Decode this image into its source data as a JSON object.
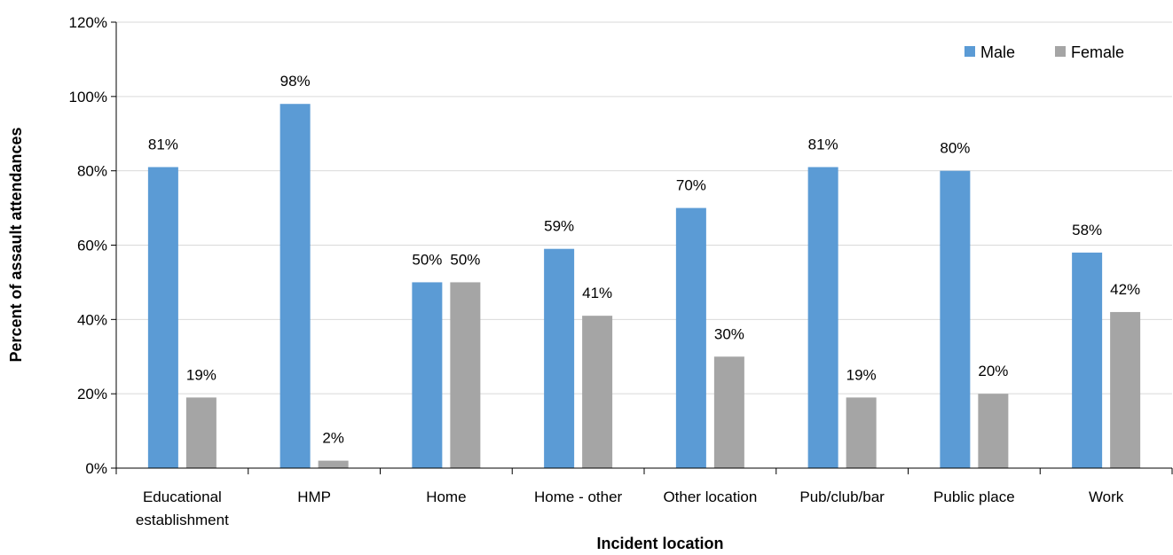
{
  "chart_data": {
    "type": "bar",
    "categories": [
      [
        "Educational",
        "establishment"
      ],
      [
        "HMP"
      ],
      [
        "Home"
      ],
      [
        "Home - other"
      ],
      [
        "Other location"
      ],
      [
        "Pub/club/bar"
      ],
      [
        "Public place"
      ],
      [
        "Work"
      ]
    ],
    "series": [
      {
        "name": "Male",
        "color": "#5b9bd5",
        "values": [
          81,
          98,
          50,
          59,
          70,
          81,
          80,
          58
        ],
        "labels": [
          "81%",
          "98%",
          "50%",
          "59%",
          "70%",
          "81%",
          "80%",
          "58%"
        ]
      },
      {
        "name": "Female",
        "color": "#a5a5a5",
        "values": [
          19,
          2,
          50,
          41,
          30,
          19,
          20,
          42
        ],
        "labels": [
          "19%",
          "2%",
          "50%",
          "41%",
          "30%",
          "19%",
          "20%",
          "42%"
        ]
      }
    ],
    "xlabel": "Incident location",
    "ylabel": "Percent of assault attendances",
    "ylim": [
      0,
      120
    ],
    "yticks": [
      0,
      20,
      40,
      60,
      80,
      100,
      120
    ],
    "ytick_labels": [
      "0%",
      "20%",
      "40%",
      "60%",
      "80%",
      "100%",
      "120%"
    ],
    "grid": true,
    "legend_position": "top-right",
    "gridline_color": "#d9d9d9",
    "axis_color": "#000000"
  }
}
